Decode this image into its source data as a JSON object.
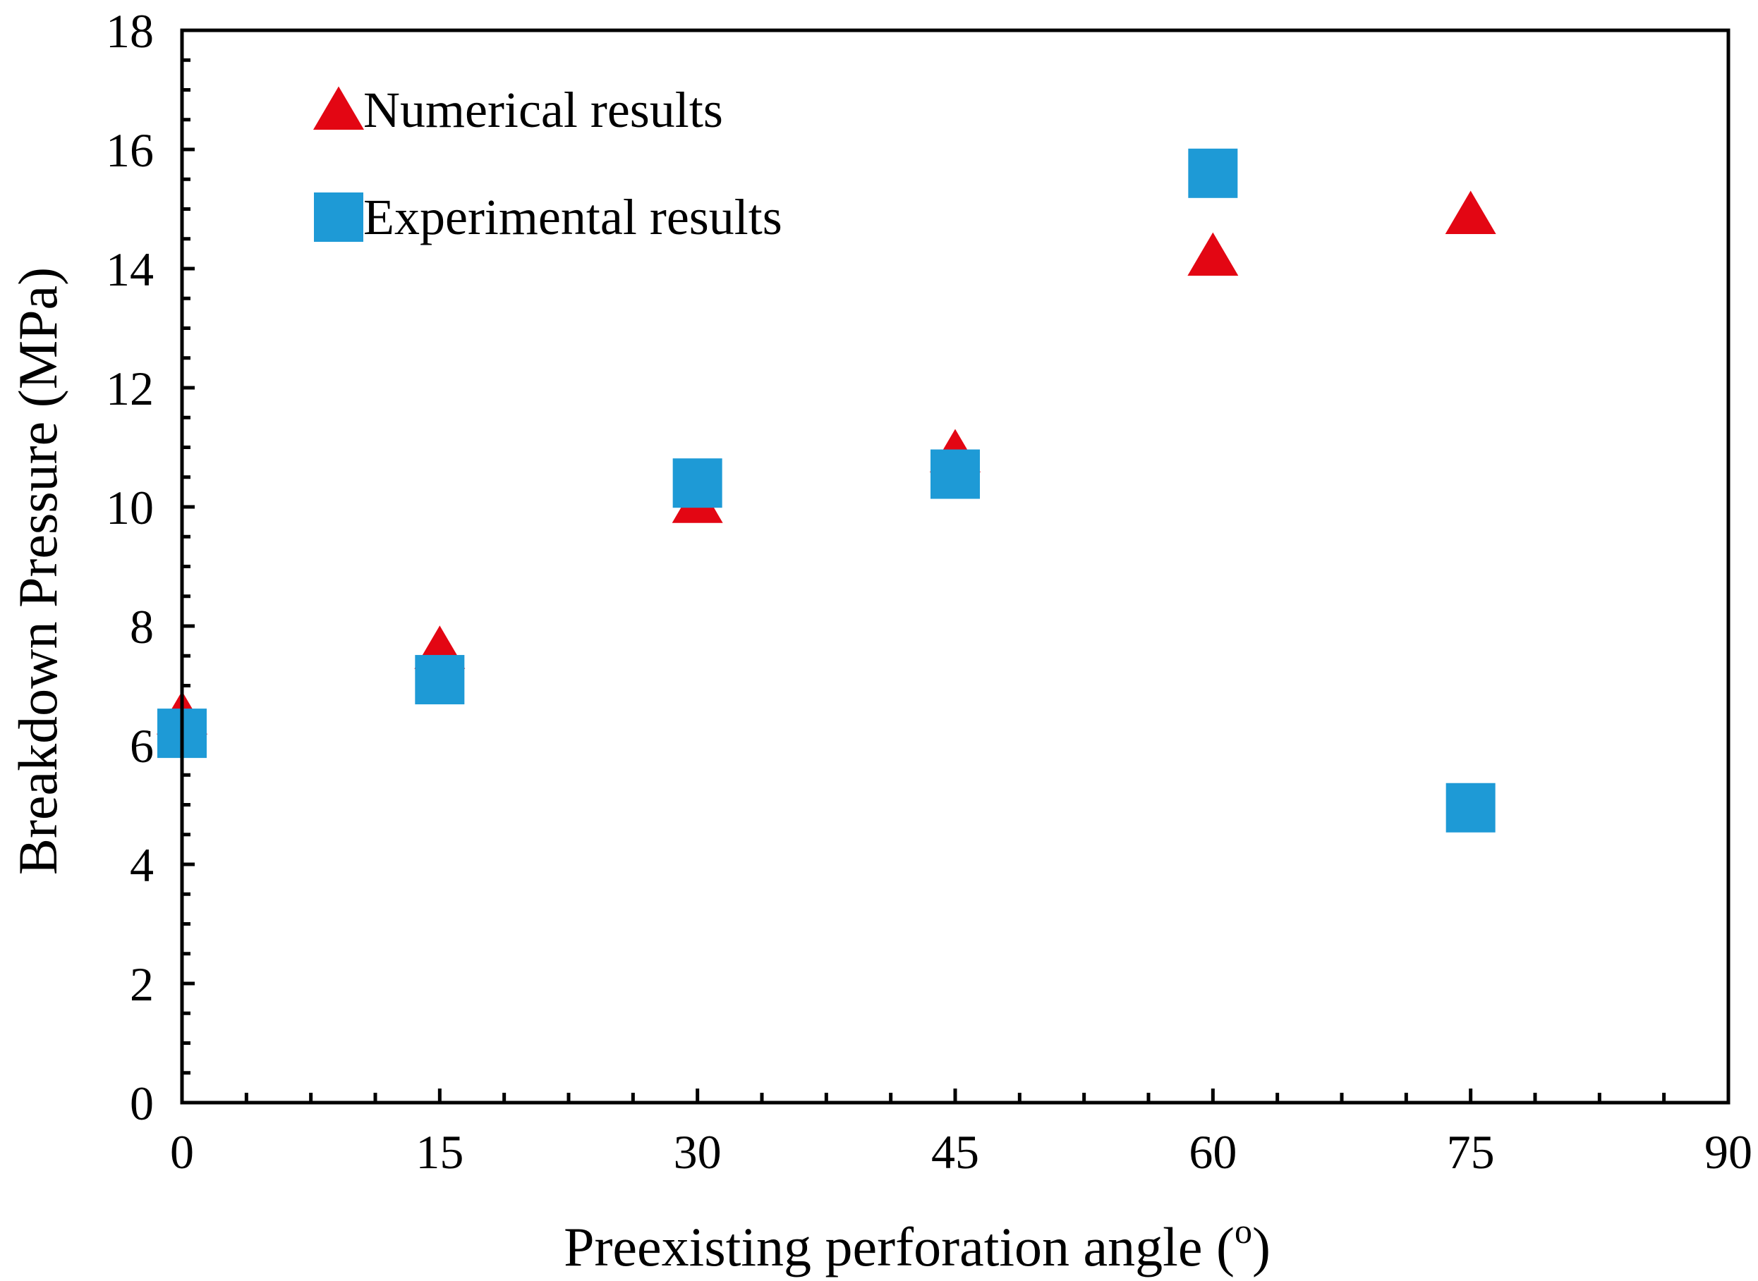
{
  "chart_data": {
    "type": "scatter",
    "title": "",
    "xlabel": "Preexisting perforation angle (",
    "xlabel_superscript": "o",
    "xlabel_suffix": ")",
    "ylabel": "Breakdown Pressure (MPa)",
    "xlim": [
      0,
      90
    ],
    "ylim": [
      0,
      18
    ],
    "x_ticks": [
      "0",
      "15",
      "30",
      "45",
      "60",
      "75",
      "90"
    ],
    "y_ticks": [
      "0",
      "2",
      "4",
      "6",
      "8",
      "10",
      "12",
      "14",
      "16",
      "18"
    ],
    "legend_position": "top-left",
    "grid": false,
    "series": [
      {
        "name": "Numerical results",
        "marker": "triangle",
        "color": "#e30613",
        "x": [
          0,
          15,
          30,
          45,
          60,
          75
        ],
        "y": [
          6.5,
          7.6,
          10.05,
          10.9,
          14.2,
          14.9
        ]
      },
      {
        "name": "Experimental results",
        "marker": "square",
        "color": "#1e9ad6",
        "x": [
          0,
          15,
          30,
          45,
          60,
          75
        ],
        "y": [
          6.2,
          7.1,
          10.4,
          10.55,
          15.6,
          4.95
        ]
      }
    ]
  }
}
